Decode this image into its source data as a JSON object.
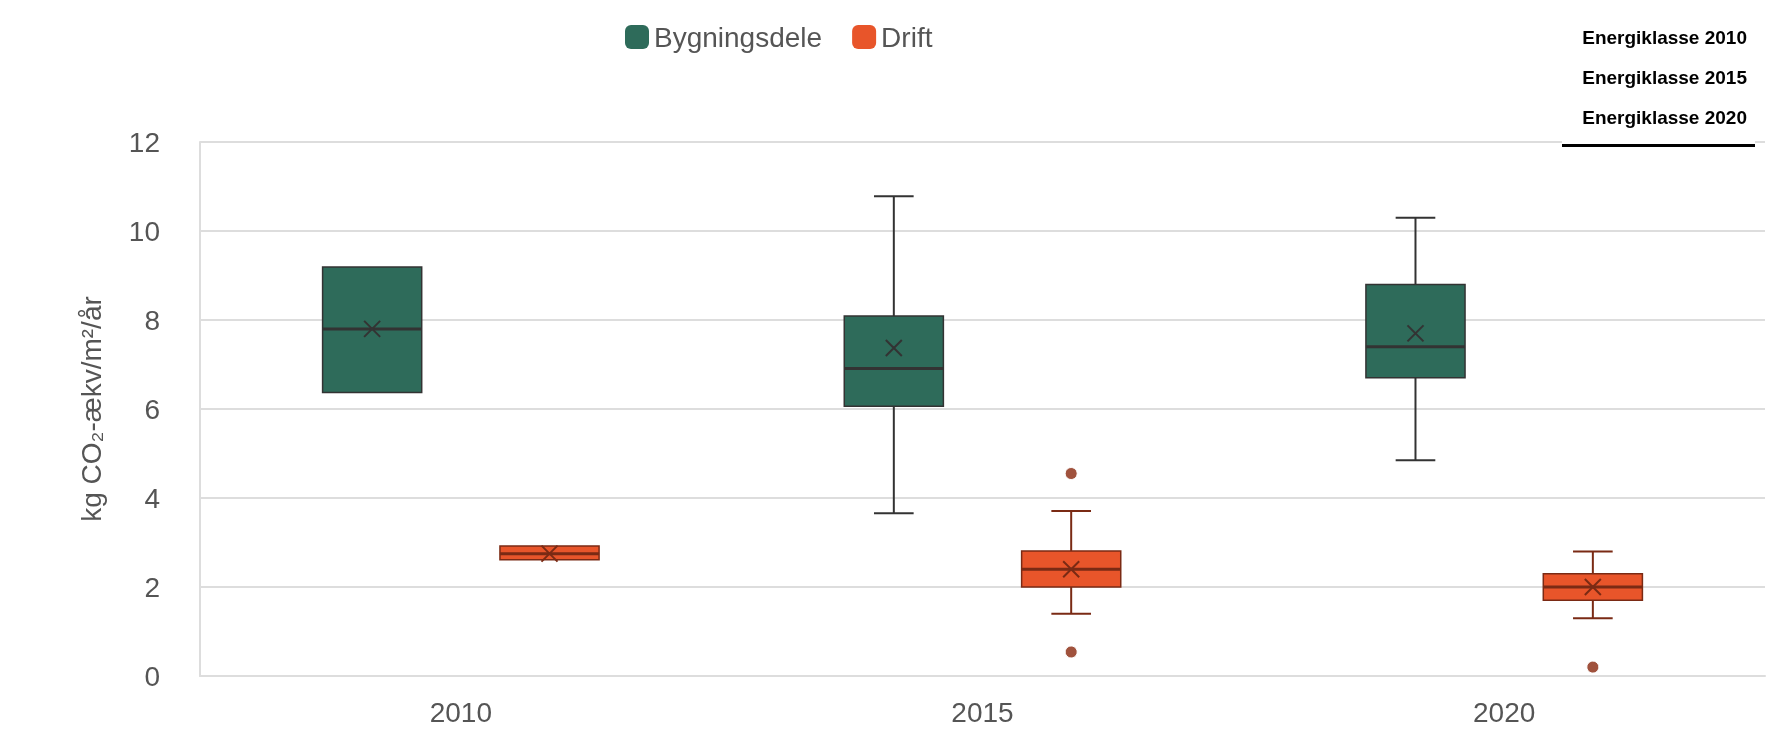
{
  "chart_data": {
    "type": "box",
    "categories": [
      "2010",
      "2015",
      "2020"
    ],
    "ylabel": "kg CO₂-ækv/m²/år",
    "ylim": [
      0,
      12
    ],
    "yticks": [
      0,
      2,
      4,
      6,
      8,
      10,
      12
    ],
    "grid": "y",
    "legend": "top",
    "annotations": [
      "Energiklasse 2010",
      "Energiklasse 2015",
      "Energiklasse 2020"
    ],
    "series": [
      {
        "name": "Bygningsdele",
        "color": "#2e6b5a",
        "boxes": [
          {
            "low": 6.37,
            "q1": 6.37,
            "median": 7.8,
            "q3": 9.19,
            "high": 9.19,
            "mean": 7.8
          },
          {
            "low": 3.66,
            "q1": 6.06,
            "median": 6.91,
            "q3": 8.09,
            "high": 10.78,
            "mean": 7.37
          },
          {
            "low": 4.85,
            "q1": 6.7,
            "median": 7.4,
            "q3": 8.8,
            "high": 10.3,
            "mean": 7.7
          }
        ]
      },
      {
        "name": "Drift",
        "color": "#e8552a",
        "boxes": [
          {
            "low": 2.61,
            "q1": 2.61,
            "median": 2.75,
            "q3": 2.92,
            "high": 2.92,
            "mean": 2.75
          },
          {
            "low": 1.4,
            "q1": 2.0,
            "median": 2.4,
            "q3": 2.81,
            "high": 3.71,
            "mean": 2.4,
            "outliers": [
              0.54,
              4.55
            ]
          },
          {
            "low": 1.3,
            "q1": 1.7,
            "median": 2.0,
            "q3": 2.3,
            "high": 2.8,
            "mean": 2.0,
            "outliers": [
              0.2
            ]
          }
        ]
      }
    ]
  }
}
